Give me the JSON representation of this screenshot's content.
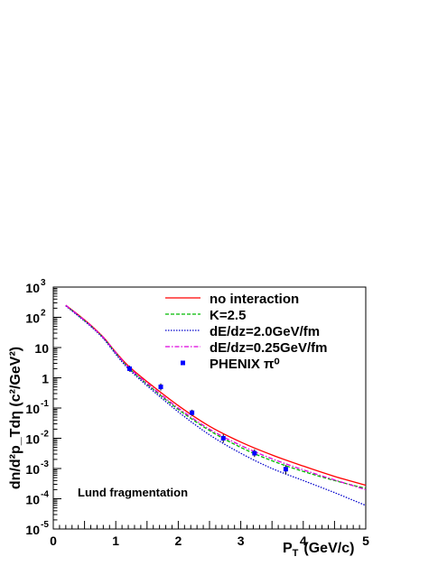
{
  "chart_data": {
    "type": "line",
    "xlabel": "P",
    "xlabel_sub": "T",
    "xlabel_unit": "(GeV/c)",
    "ylabel": "dn/d²p_Tdη (c²/GeV²)",
    "xlim": [
      0,
      5
    ],
    "ylim": [
      1e-05,
      1000
    ],
    "yscale": "log",
    "x_ticks": [
      "0",
      "1",
      "2",
      "3",
      "4",
      "5"
    ],
    "y_ticks": [
      {
        "base": "10",
        "exp": "-5"
      },
      {
        "base": "10",
        "exp": "-4"
      },
      {
        "base": "10",
        "exp": "-3"
      },
      {
        "base": "10",
        "exp": "-2"
      },
      {
        "base": "10",
        "exp": "-1"
      },
      {
        "base": "1",
        "exp": ""
      },
      {
        "base": "10",
        "exp": ""
      },
      {
        "base": "10",
        "exp": "2"
      },
      {
        "base": "10",
        "exp": "3"
      }
    ],
    "annotation": "Lund fragmentation",
    "legend_position": "top-right",
    "series": [
      {
        "name": "no interaction",
        "color": "#ff0000",
        "dash": "solid",
        "x": [
          0.2,
          0.4,
          0.6,
          0.8,
          1.0,
          1.2,
          1.5,
          2.0,
          2.5,
          3.0,
          3.5,
          4.0,
          4.5,
          5.0
        ],
        "y": [
          250,
          120,
          55,
          22,
          7,
          2.5,
          0.75,
          0.12,
          0.025,
          0.0075,
          0.0028,
          0.0012,
          0.00055,
          0.00028
        ]
      },
      {
        "name": "K=2.5",
        "color": "#00bb00",
        "dash": "dashed",
        "x": [
          0.2,
          0.4,
          0.6,
          0.8,
          1.0,
          1.2,
          1.5,
          2.0,
          2.5,
          3.0,
          3.5,
          4.0,
          4.5,
          5.0
        ],
        "y": [
          250,
          115,
          52,
          21,
          6.5,
          2.2,
          0.62,
          0.09,
          0.018,
          0.005,
          0.0018,
          0.0008,
          0.0004,
          0.00022
        ]
      },
      {
        "name": "dE/dz=2.0GeV/fm",
        "color": "#0000cc",
        "dash": "dotted",
        "x": [
          0.2,
          0.4,
          0.6,
          0.8,
          1.0,
          1.2,
          1.5,
          2.0,
          2.5,
          3.0,
          3.5,
          4.0,
          4.5,
          5.0
        ],
        "y": [
          240,
          110,
          50,
          20,
          6,
          2.0,
          0.55,
          0.075,
          0.013,
          0.0032,
          0.001,
          0.0004,
          0.00016,
          6e-05
        ]
      },
      {
        "name": "dE/dz=0.25GeV/fm",
        "color": "#dd00dd",
        "dash": "dashdot",
        "x": [
          0.2,
          0.4,
          0.6,
          0.8,
          1.0,
          1.2,
          1.5,
          2.0,
          2.5,
          3.0,
          3.5,
          4.0,
          4.5,
          5.0
        ],
        "y": [
          250,
          118,
          53,
          21.5,
          6.8,
          2.3,
          0.66,
          0.1,
          0.02,
          0.0058,
          0.0021,
          0.0009,
          0.00042,
          0.0002
        ]
      }
    ],
    "points": {
      "name": "PHENIX π⁰",
      "color": "#0000ff",
      "x": [
        1.22,
        1.72,
        2.22,
        2.72,
        3.22,
        3.72
      ],
      "y": [
        2.0,
        0.5,
        0.07,
        0.01,
        0.0032,
        0.00095
      ],
      "y_low": [
        1.6,
        0.38,
        0.055,
        0.0072,
        0.0024,
        0.00065
      ],
      "y_high": [
        2.5,
        0.65,
        0.088,
        0.0135,
        0.0043,
        0.0013
      ]
    }
  }
}
